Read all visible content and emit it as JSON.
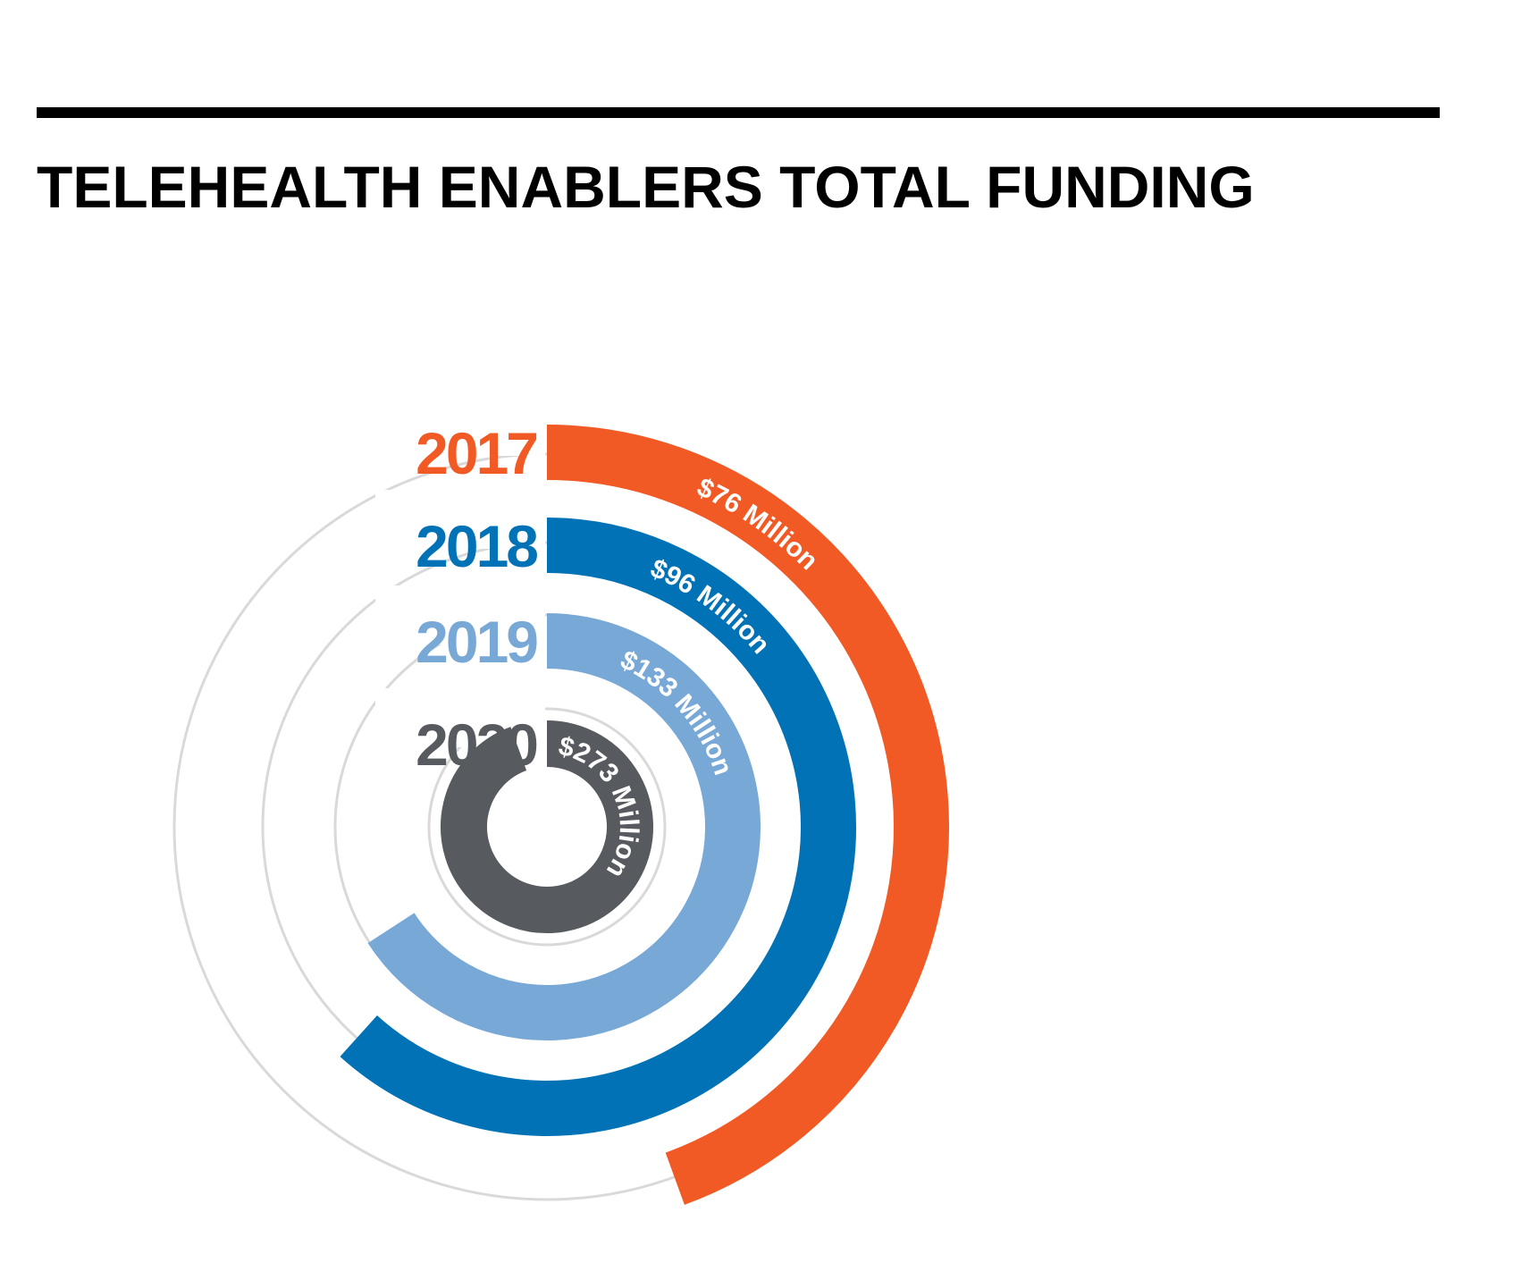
{
  "chart_data": {
    "type": "radial-bar",
    "title": "TELEHEALTH ENABLERS TOTAL FUNDING",
    "unit": "Million",
    "series": [
      {
        "year": "2017",
        "value": 76,
        "label": "$76 Million",
        "color": "#f15a24"
      },
      {
        "year": "2018",
        "value": 96,
        "label": "$96 Million",
        "color": "#0072b5"
      },
      {
        "year": "2019",
        "value": 133,
        "label": "$133 Million",
        "color": "#78a8d6"
      },
      {
        "year": "2020",
        "value": 273,
        "label": "$273 Million",
        "color": "#575a5f"
      }
    ],
    "track_color": "#d9d9d9"
  }
}
